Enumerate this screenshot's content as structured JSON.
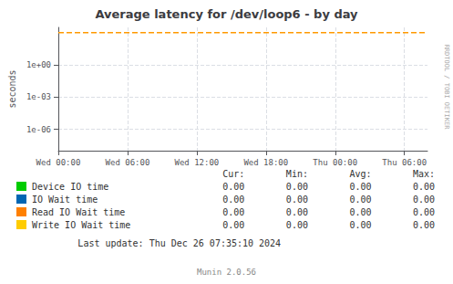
{
  "chart_data": {
    "type": "line",
    "title": "Average latency for /dev/loop6 - by day",
    "y_label": "seconds",
    "log": "y",
    "grid": true,
    "xlim": [
      0,
      32
    ],
    "xticks": [
      {
        "value": 0,
        "label": "Wed 00:00"
      },
      {
        "value": 6,
        "label": "Wed 06:00"
      },
      {
        "value": 12,
        "label": "Wed 12:00"
      },
      {
        "value": 18,
        "label": "Wed 18:00"
      },
      {
        "value": 24,
        "label": "Thu 00:00"
      },
      {
        "value": 30,
        "label": "Thu 06:00"
      }
    ],
    "ylim": [
      1e-08,
      3162.2776601683795
    ],
    "yticks": [
      {
        "value": 1e-06,
        "label": "1e-06"
      },
      {
        "value": 0.001,
        "label": "1e-03"
      },
      {
        "value": 1,
        "label": "1e+00"
      }
    ],
    "hlines": [
      {
        "y": 1000,
        "color": "#ff9900",
        "line_style": "dashed"
      }
    ],
    "series": [
      {
        "name": "Device IO time",
        "color": "#00cc00",
        "values": []
      },
      {
        "name": "IO Wait time",
        "color": "#0066b3",
        "values": []
      },
      {
        "name": "Read IO Wait time",
        "color": "#ff8000",
        "values": []
      },
      {
        "name": "Write IO Wait time",
        "color": "#ffcc00",
        "values": []
      }
    ],
    "table": {
      "columns": [
        "Cur:",
        "Min:",
        "Avg:",
        "Max:"
      ],
      "rows": [
        [
          "0.00",
          "0.00",
          "0.00",
          "0.00"
        ],
        [
          "0.00",
          "0.00",
          "0.00",
          "0.00"
        ],
        [
          "0.00",
          "0.00",
          "0.00",
          "0.00"
        ],
        [
          "0.00",
          "0.00",
          "0.00",
          "0.00"
        ]
      ]
    },
    "annotations": [
      "RRDTOOL / TOBI OETIKER",
      "Last update: Thu Dec 26 07:35:10 2024",
      "Munin 2.0.56"
    ]
  }
}
